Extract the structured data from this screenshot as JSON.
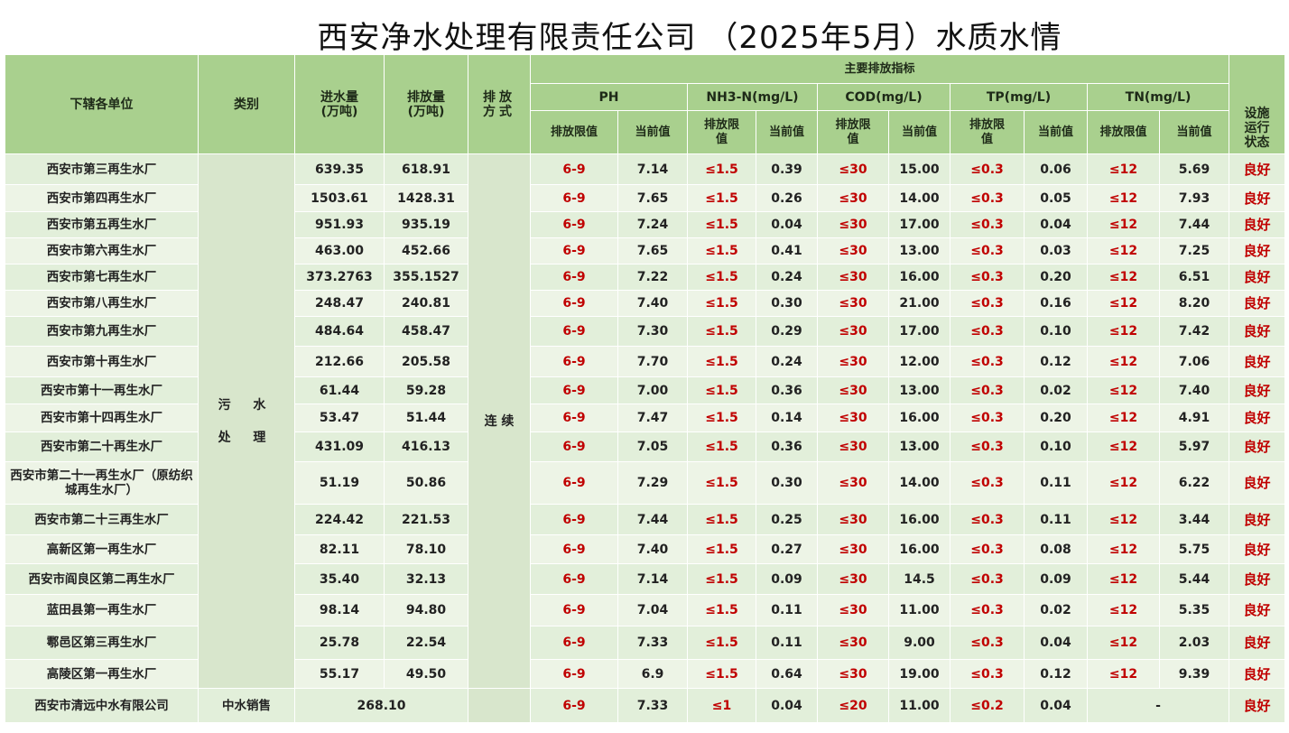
{
  "title": "西安净水处理有限责任公司 （2025年5月）水质水情",
  "headers": {
    "unit": "下辖各单位",
    "category": "类别",
    "inflow": "进水量\n(万吨)",
    "discharge": "排放量\n(万吨)",
    "method": "排放\n方式",
    "main_indicators": "主要排放指标",
    "ph": "PH",
    "nh3n": "NH3-N(mg/L)",
    "cod": "COD(mg/L)",
    "tp": "TP(mg/L)",
    "tn": "TN(mg/L)",
    "status": "设施\n运行\n状态",
    "limit": "排放限值",
    "limit_wrap": "排放限\n值",
    "current": "当前值"
  },
  "category_wastewater": "污 水\n处 理",
  "method_continuous": "连 续",
  "colors": {
    "header": "#a9d08e",
    "row_even": "#e2efda",
    "row_odd": "#edf4e6",
    "limit_red": "#c00000"
  },
  "rows": [
    {
      "unit": "西安市第三再生水厂",
      "inflow": "639.35",
      "discharge": "618.91",
      "ph_limit": "6-9",
      "ph": "7.14",
      "nh3_limit": "≤1.5",
      "nh3": "0.39",
      "cod_limit": "≤30",
      "cod": "15.00",
      "tp_limit": "≤0.3",
      "tp": "0.06",
      "tn_limit": "≤12",
      "tn": "5.69",
      "status": "良好"
    },
    {
      "unit": "西安市第四再生水厂",
      "inflow": "1503.61",
      "discharge": "1428.31",
      "ph_limit": "6-9",
      "ph": "7.65",
      "nh3_limit": "≤1.5",
      "nh3": "0.26",
      "cod_limit": "≤30",
      "cod": "14.00",
      "tp_limit": "≤0.3",
      "tp": "0.05",
      "tn_limit": "≤12",
      "tn": "7.93",
      "status": "良好"
    },
    {
      "unit": "西安市第五再生水厂",
      "inflow": "951.93",
      "discharge": "935.19",
      "ph_limit": "6-9",
      "ph": "7.24",
      "nh3_limit": "≤1.5",
      "nh3": "0.04",
      "cod_limit": "≤30",
      "cod": "17.00",
      "tp_limit": "≤0.3",
      "tp": "0.04",
      "tn_limit": "≤12",
      "tn": "7.44",
      "status": "良好"
    },
    {
      "unit": "西安市第六再生水厂",
      "inflow": "463.00",
      "discharge": "452.66",
      "ph_limit": "6-9",
      "ph": "7.65",
      "nh3_limit": "≤1.5",
      "nh3": "0.41",
      "cod_limit": "≤30",
      "cod": "13.00",
      "tp_limit": "≤0.3",
      "tp": "0.03",
      "tn_limit": "≤12",
      "tn": "7.25",
      "status": "良好"
    },
    {
      "unit": "西安市第七再生水厂",
      "inflow": "373.2763",
      "discharge": "355.1527",
      "ph_limit": "6-9",
      "ph": "7.22",
      "nh3_limit": "≤1.5",
      "nh3": "0.24",
      "cod_limit": "≤30",
      "cod": "16.00",
      "tp_limit": "≤0.3",
      "tp": "0.20",
      "tn_limit": "≤12",
      "tn": "6.51",
      "status": "良好"
    },
    {
      "unit": "西安市第八再生水厂",
      "inflow": "248.47",
      "discharge": "240.81",
      "ph_limit": "6-9",
      "ph": "7.40",
      "nh3_limit": "≤1.5",
      "nh3": "0.30",
      "cod_limit": "≤30",
      "cod": "21.00",
      "tp_limit": "≤0.3",
      "tp": "0.16",
      "tn_limit": "≤12",
      "tn": "8.20",
      "status": "良好"
    },
    {
      "unit": "西安市第九再生水厂",
      "inflow": "484.64",
      "discharge": "458.47",
      "ph_limit": "6-9",
      "ph": "7.30",
      "nh3_limit": "≤1.5",
      "nh3": "0.29",
      "cod_limit": "≤30",
      "cod": "17.00",
      "tp_limit": "≤0.3",
      "tp": "0.10",
      "tn_limit": "≤12",
      "tn": "7.42",
      "status": "良好"
    },
    {
      "unit": "西安市第十再生水厂",
      "inflow": "212.66",
      "discharge": "205.58",
      "ph_limit": "6-9",
      "ph": "7.70",
      "nh3_limit": "≤1.5",
      "nh3": "0.24",
      "cod_limit": "≤30",
      "cod": "12.00",
      "tp_limit": "≤0.3",
      "tp": "0.12",
      "tn_limit": "≤12",
      "tn": "7.06",
      "status": "良好"
    },
    {
      "unit": "西安市第十一再生水厂",
      "inflow": "61.44",
      "discharge": "59.28",
      "ph_limit": "6-9",
      "ph": "7.00",
      "nh3_limit": "≤1.5",
      "nh3": "0.36",
      "cod_limit": "≤30",
      "cod": "13.00",
      "tp_limit": "≤0.3",
      "tp": "0.02",
      "tn_limit": "≤12",
      "tn": "7.40",
      "status": "良好"
    },
    {
      "unit": "西安市第十四再生水厂",
      "inflow": "53.47",
      "discharge": "51.44",
      "ph_limit": "6-9",
      "ph": "7.47",
      "nh3_limit": "≤1.5",
      "nh3": "0.14",
      "cod_limit": "≤30",
      "cod": "16.00",
      "tp_limit": "≤0.3",
      "tp": "0.20",
      "tn_limit": "≤12",
      "tn": "4.91",
      "status": "良好"
    },
    {
      "unit": "西安市第二十再生水厂",
      "inflow": "431.09",
      "discharge": "416.13",
      "ph_limit": "6-9",
      "ph": "7.05",
      "nh3_limit": "≤1.5",
      "nh3": "0.36",
      "cod_limit": "≤30",
      "cod": "13.00",
      "tp_limit": "≤0.3",
      "tp": "0.10",
      "tn_limit": "≤12",
      "tn": "5.97",
      "status": "良好"
    },
    {
      "unit": "西安市第二十一再生水厂（原纺织城再生水厂）",
      "inflow": "51.19",
      "discharge": "50.86",
      "ph_limit": "6-9",
      "ph": "7.29",
      "nh3_limit": "≤1.5",
      "nh3": "0.30",
      "cod_limit": "≤30",
      "cod": "14.00",
      "tp_limit": "≤0.3",
      "tp": "0.11",
      "tn_limit": "≤12",
      "tn": "6.22",
      "status": "良好"
    },
    {
      "unit": "西安市第二十三再生水厂",
      "inflow": "224.42",
      "discharge": "221.53",
      "ph_limit": "6-9",
      "ph": "7.44",
      "nh3_limit": "≤1.5",
      "nh3": "0.25",
      "cod_limit": "≤30",
      "cod": "16.00",
      "tp_limit": "≤0.3",
      "tp": "0.11",
      "tn_limit": "≤12",
      "tn": "3.44",
      "status": "良好"
    },
    {
      "unit": "高新区第一再生水厂",
      "inflow": "82.11",
      "discharge": "78.10",
      "ph_limit": "6-9",
      "ph": "7.40",
      "nh3_limit": "≤1.5",
      "nh3": "0.27",
      "cod_limit": "≤30",
      "cod": "16.00",
      "tp_limit": "≤0.3",
      "tp": "0.08",
      "tn_limit": "≤12",
      "tn": "5.75",
      "status": "良好"
    },
    {
      "unit": "西安市阎良区第二再生水厂",
      "inflow": "35.40",
      "discharge": "32.13",
      "ph_limit": "6-9",
      "ph": "7.14",
      "nh3_limit": "≤1.5",
      "nh3": "0.09",
      "cod_limit": "≤30",
      "cod": "14.5",
      "tp_limit": "≤0.3",
      "tp": "0.09",
      "tn_limit": "≤12",
      "tn": "5.44",
      "status": "良好"
    },
    {
      "unit": "蓝田县第一再生水厂",
      "inflow": "98.14",
      "discharge": "94.80",
      "ph_limit": "6-9",
      "ph": "7.04",
      "nh3_limit": "≤1.5",
      "nh3": "0.11",
      "cod_limit": "≤30",
      "cod": "11.00",
      "tp_limit": "≤0.3",
      "tp": "0.02",
      "tn_limit": "≤12",
      "tn": "5.35",
      "status": "良好"
    },
    {
      "unit": "鄠邑区第三再生水厂",
      "inflow": "25.78",
      "discharge": "22.54",
      "ph_limit": "6-9",
      "ph": "7.33",
      "nh3_limit": "≤1.5",
      "nh3": "0.11",
      "cod_limit": "≤30",
      "cod": "9.00",
      "tp_limit": "≤0.3",
      "tp": "0.04",
      "tn_limit": "≤12",
      "tn": "2.03",
      "status": "良好"
    },
    {
      "unit": "高陵区第一再生水厂",
      "inflow": "55.17",
      "discharge": "49.50",
      "ph_limit": "6-9",
      "ph": "6.9",
      "nh3_limit": "≤1.5",
      "nh3": "0.64",
      "cod_limit": "≤30",
      "cod": "19.00",
      "tp_limit": "≤0.3",
      "tp": "0.12",
      "tn_limit": "≤12",
      "tn": "9.39",
      "status": "良好"
    }
  ],
  "last_row": {
    "unit": "西安市清远中水有限公司",
    "category": "中水销售",
    "volume": "268.10",
    "ph_limit": "6-9",
    "ph": "7.33",
    "nh3_limit": "≤1",
    "nh3": "0.04",
    "cod_limit": "≤20",
    "cod": "11.00",
    "tp_limit": "≤0.2",
    "tp": "0.04",
    "tn": "-",
    "status": "良好"
  }
}
